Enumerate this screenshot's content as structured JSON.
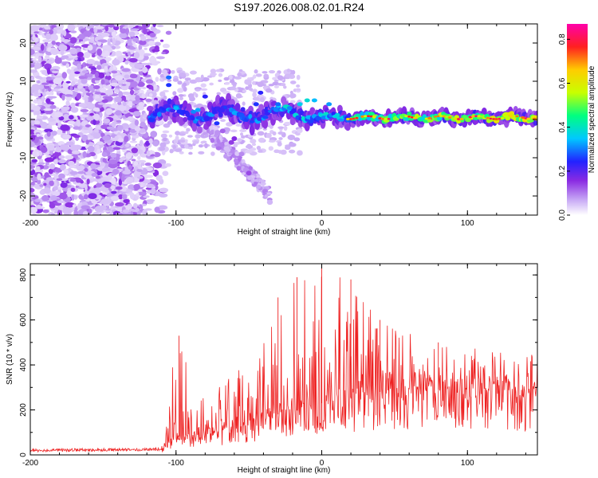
{
  "figure": {
    "title": "S197.2026.008.02.01.R24"
  },
  "chart_data": [
    {
      "type": "heatmap",
      "title": "S197.2026.008.02.01.R24",
      "xlabel": "Height of straight line (km)",
      "ylabel": "Frequency (Hz)",
      "xlim": [
        -200,
        148
      ],
      "ylim": [
        -25,
        25
      ],
      "xticks": [
        -200,
        -100,
        0,
        100
      ],
      "yticks": [
        -20,
        -10,
        0,
        10,
        20
      ],
      "colorbar": {
        "label": "Normalized spectral amplitude",
        "range": [
          0.0,
          0.87
        ],
        "ticks": [
          0.0,
          0.2,
          0.4,
          0.6,
          0.8
        ],
        "colormap": [
          "#ffffff",
          "#c7a8f5",
          "#8a2be2",
          "#2222ff",
          "#00c8ff",
          "#00ff80",
          "#c8ff00",
          "#ffcc00",
          "#ff2020",
          "#ff00aa"
        ]
      },
      "features": [
        {
          "desc": "noise",
          "x": [
            -200,
            -120
          ],
          "y": [
            -25,
            25
          ],
          "amplitude": 0.1
        },
        {
          "desc": "ridge",
          "x": [
            -120,
            148
          ],
          "y_center": 0.5,
          "amplitude_peak": 0.85
        },
        {
          "desc": "branch",
          "x": [
            -80,
            -40
          ],
          "y": [
            -2,
            -20
          ],
          "amplitude": 0.12
        }
      ]
    },
    {
      "type": "line",
      "xlabel": "Height of straight line (km)",
      "ylabel": "SNR (10 * v/v)",
      "xlim": [
        -200,
        148
      ],
      "ylim": [
        0,
        850
      ],
      "xticks": [
        -200,
        -100,
        0,
        100
      ],
      "yticks": [
        0,
        200,
        400,
        600,
        800
      ],
      "series": [
        {
          "name": "SNR",
          "color": "#ee2222",
          "envelope": [
            {
              "x": -200,
              "baseline": 20,
              "peak": 35
            },
            {
              "x": -110,
              "baseline": 25,
              "peak": 45
            },
            {
              "x": -100,
              "baseline": 80,
              "peak": 530
            },
            {
              "x": -80,
              "baseline": 90,
              "peak": 250
            },
            {
              "x": -50,
              "baseline": 120,
              "peak": 420
            },
            {
              "x": -30,
              "baseline": 180,
              "peak": 700
            },
            {
              "x": -15,
              "baseline": 200,
              "peak": 790
            },
            {
              "x": 0,
              "baseline": 230,
              "peak": 850
            },
            {
              "x": 20,
              "baseline": 250,
              "peak": 780
            },
            {
              "x": 40,
              "baseline": 280,
              "peak": 600
            },
            {
              "x": 80,
              "baseline": 290,
              "peak": 500
            },
            {
              "x": 120,
              "baseline": 280,
              "peak": 470
            },
            {
              "x": 148,
              "baseline": 260,
              "peak": 480
            }
          ]
        }
      ]
    }
  ]
}
